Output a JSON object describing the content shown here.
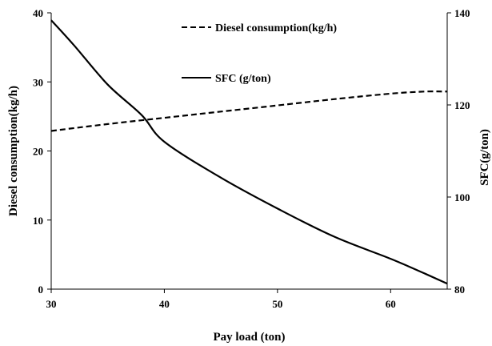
{
  "chart_data": {
    "type": "line",
    "title": "",
    "xlabel": "Pay load (ton)",
    "ylabel": "Diesel consumption(kg/h)",
    "y2label": "SFC(g/ton)",
    "xlim": [
      30,
      65
    ],
    "ylim": [
      0,
      40
    ],
    "y2lim": [
      80,
      140
    ],
    "x_ticks": [
      30,
      40,
      50,
      60
    ],
    "y_ticks": [
      0,
      10,
      20,
      30,
      40
    ],
    "y2_ticks": [
      80,
      100,
      120,
      140
    ],
    "grid": false,
    "legend_position": "top-center",
    "series": [
      {
        "name": "Diesel consumption(kg/h)",
        "axis": "left",
        "style": "dashed",
        "color": "#000000",
        "x": [
          30,
          35,
          40,
          45,
          50,
          55,
          60,
          63,
          65
        ],
        "y": [
          22.9,
          23.9,
          24.8,
          25.7,
          26.6,
          27.5,
          28.3,
          28.6,
          28.6
        ]
      },
      {
        "name": "SFC (g/ton)",
        "axis": "right",
        "style": "solid",
        "color": "#000000",
        "x": [
          30,
          32,
          35,
          38,
          40,
          45,
          50,
          55,
          60,
          63,
          65
        ],
        "y": [
          138.4,
          133.0,
          124.4,
          117.8,
          112.0,
          104.2,
          97.5,
          91.4,
          86.6,
          83.4,
          81.2
        ]
      }
    ]
  }
}
